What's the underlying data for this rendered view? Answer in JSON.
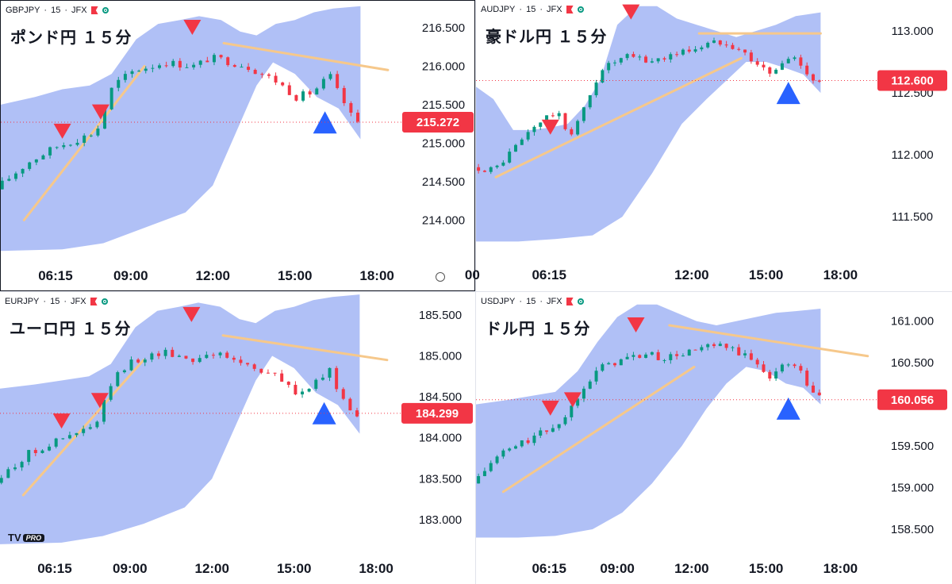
{
  "chart_data": [
    {
      "type": "candlestick",
      "symbol": "GBPJPY",
      "interval": "15",
      "exchange": "JFX",
      "title": "ポンド円 １５分",
      "last_price": "215.272",
      "y_ticks": [
        "216.500",
        "216.000",
        "215.500",
        "215.000",
        "214.500",
        "214.000"
      ],
      "y_tick_values": [
        216.5,
        216.0,
        215.5,
        215.0,
        214.5,
        214.0
      ],
      "x_ticks": [
        "06:15",
        "09:00",
        "12:00",
        "15:00",
        "18:00"
      ],
      "x_tick_hours": [
        6.25,
        9,
        12,
        15,
        18
      ],
      "ylim": [
        213.55,
        216.85
      ],
      "xlim": [
        4.25,
        18.75
      ],
      "path": [
        [
          4.3,
          214.4
        ],
        [
          5.5,
          214.75
        ],
        [
          6.5,
          214.95
        ],
        [
          7.3,
          215.05
        ],
        [
          8.0,
          215.15
        ],
        [
          8.6,
          215.75
        ],
        [
          9.4,
          215.95
        ],
        [
          10.0,
          216.0
        ],
        [
          10.5,
          216.05
        ],
        [
          11.6,
          216.0
        ],
        [
          12.1,
          216.1
        ],
        [
          12.4,
          216.1
        ],
        [
          13.5,
          216.0
        ],
        [
          14.6,
          215.8
        ],
        [
          15.3,
          215.6
        ],
        [
          15.8,
          215.65
        ],
        [
          16.2,
          215.75
        ],
        [
          16.5,
          215.9
        ],
        [
          16.9,
          215.6
        ],
        [
          17.2,
          215.45
        ],
        [
          17.4,
          215.27
        ]
      ],
      "cloud_upper": [
        [
          4.25,
          215.5
        ],
        [
          5.5,
          215.6
        ],
        [
          6.5,
          215.7
        ],
        [
          7.5,
          215.75
        ],
        [
          8.3,
          215.9
        ],
        [
          9.2,
          216.35
        ],
        [
          10.0,
          216.55
        ],
        [
          10.8,
          216.6
        ],
        [
          11.5,
          216.65
        ],
        [
          12.3,
          216.6
        ],
        [
          13.0,
          216.45
        ],
        [
          13.6,
          216.4
        ],
        [
          14.3,
          216.55
        ],
        [
          15.0,
          216.6
        ],
        [
          15.7,
          216.7
        ],
        [
          16.4,
          216.75
        ],
        [
          17.4,
          216.78
        ]
      ],
      "cloud_lower": [
        [
          4.25,
          213.6
        ],
        [
          6.5,
          213.62
        ],
        [
          8.0,
          213.7
        ],
        [
          9.5,
          213.9
        ],
        [
          11.0,
          214.1
        ],
        [
          12.0,
          214.45
        ],
        [
          12.8,
          215.1
        ],
        [
          13.6,
          215.75
        ],
        [
          14.2,
          216.05
        ],
        [
          15.0,
          215.9
        ],
        [
          15.8,
          215.6
        ],
        [
          16.6,
          215.45
        ],
        [
          17.4,
          215.05
        ]
      ],
      "trendlines": [
        [
          [
            5.1,
            214.0
          ],
          [
            9.5,
            216.0
          ]
        ],
        [
          [
            12.4,
            216.3
          ],
          [
            18.4,
            215.95
          ]
        ]
      ],
      "sell_signals": [
        [
          6.5,
          215.15
        ],
        [
          7.9,
          215.4
        ],
        [
          11.25,
          216.5
        ]
      ],
      "buy_signals": [
        [
          16.1,
          215.27
        ]
      ],
      "down_color": "#f23645",
      "up_color": "#089981"
    },
    {
      "type": "candlestick",
      "symbol": "AUDJPY",
      "interval": "15",
      "exchange": "JFX",
      "title": "豪ドル円 １５分",
      "last_price": "112.600",
      "y_ticks": [
        "113.000",
        "112.500",
        "112.000",
        "111.500"
      ],
      "y_tick_values": [
        113.0,
        112.5,
        112.0,
        111.5
      ],
      "x_ticks": [
        "00",
        "06:15",
        "12:00",
        "15:00",
        "18:00"
      ],
      "x_tick_hours": [
        3.15,
        6.25,
        12,
        15,
        18
      ],
      "ylim": [
        111.2,
        113.25
      ],
      "xlim": [
        3.3,
        19.3
      ],
      "path": [
        [
          3.4,
          111.9
        ],
        [
          4.3,
          111.88
        ],
        [
          5.3,
          112.1
        ],
        [
          6.0,
          112.25
        ],
        [
          6.8,
          112.35
        ],
        [
          7.3,
          112.15
        ],
        [
          8.0,
          112.4
        ],
        [
          8.6,
          112.7
        ],
        [
          9.2,
          112.75
        ],
        [
          9.8,
          112.8
        ],
        [
          10.5,
          112.75
        ],
        [
          11.3,
          112.8
        ],
        [
          12.2,
          112.85
        ],
        [
          13.0,
          112.9
        ],
        [
          13.6,
          112.92
        ],
        [
          14.2,
          112.85
        ],
        [
          14.8,
          112.75
        ],
        [
          15.4,
          112.65
        ],
        [
          15.8,
          112.72
        ],
        [
          16.3,
          112.8
        ],
        [
          16.8,
          112.7
        ],
        [
          17.2,
          112.6
        ]
      ],
      "cloud_upper": [
        [
          3.3,
          112.55
        ],
        [
          4.0,
          112.45
        ],
        [
          4.8,
          112.2
        ],
        [
          5.5,
          112.2
        ],
        [
          6.3,
          112.22
        ],
        [
          7.0,
          112.25
        ],
        [
          7.7,
          112.4
        ],
        [
          8.3,
          112.6
        ],
        [
          9.0,
          113.05
        ],
        [
          9.8,
          113.2
        ],
        [
          10.6,
          113.2
        ],
        [
          11.4,
          113.1
        ],
        [
          12.2,
          113.05
        ],
        [
          13.0,
          113.0
        ],
        [
          13.8,
          112.95
        ],
        [
          14.6,
          113.0
        ],
        [
          15.4,
          113.05
        ],
        [
          16.2,
          113.12
        ],
        [
          17.2,
          113.15
        ]
      ],
      "cloud_lower": [
        [
          3.3,
          111.3
        ],
        [
          5.0,
          111.3
        ],
        [
          6.5,
          111.32
        ],
        [
          8.0,
          111.35
        ],
        [
          9.2,
          111.5
        ],
        [
          10.4,
          111.85
        ],
        [
          11.6,
          112.25
        ],
        [
          12.6,
          112.45
        ],
        [
          13.4,
          112.6
        ],
        [
          14.2,
          112.75
        ],
        [
          15.0,
          112.75
        ],
        [
          15.8,
          112.7
        ],
        [
          16.5,
          112.65
        ],
        [
          17.2,
          112.5
        ]
      ],
      "trendlines": [
        [
          [
            4.1,
            111.82
          ],
          [
            14.0,
            112.78
          ]
        ],
        [
          [
            12.3,
            112.98
          ],
          [
            17.2,
            112.98
          ]
        ]
      ],
      "sell_signals": [
        [
          6.3,
          112.22
        ],
        [
          9.55,
          113.15
        ]
      ],
      "buy_signals": [
        [
          15.9,
          112.5
        ]
      ],
      "down_color": "#f23645",
      "up_color": "#089981"
    },
    {
      "type": "candlestick",
      "symbol": "EURJPY",
      "interval": "15",
      "exchange": "JFX",
      "title": "ユーロ円 １５分",
      "last_price": "184.299",
      "y_ticks": [
        "185.500",
        "185.000",
        "184.500",
        "184.000",
        "183.500",
        "183.000"
      ],
      "y_tick_values": [
        185.5,
        185.0,
        184.5,
        184.0,
        183.5,
        183.0
      ],
      "x_ticks": [
        "06:15",
        "09:00",
        "12:00",
        "15:00",
        "18:00"
      ],
      "x_tick_hours": [
        6.25,
        9,
        12,
        15,
        18
      ],
      "ylim": [
        182.68,
        185.78
      ],
      "xlim": [
        4.25,
        18.75
      ],
      "path": [
        [
          4.3,
          183.45
        ],
        [
          5.5,
          183.8
        ],
        [
          6.5,
          183.95
        ],
        [
          7.3,
          184.05
        ],
        [
          8.0,
          184.15
        ],
        [
          8.6,
          184.7
        ],
        [
          9.4,
          184.95
        ],
        [
          10.0,
          185.0
        ],
        [
          10.5,
          185.05
        ],
        [
          11.6,
          184.95
        ],
        [
          12.1,
          185.05
        ],
        [
          12.4,
          185.02
        ],
        [
          13.5,
          184.9
        ],
        [
          14.6,
          184.75
        ],
        [
          15.3,
          184.55
        ],
        [
          15.8,
          184.6
        ],
        [
          16.2,
          184.7
        ],
        [
          16.5,
          184.85
        ],
        [
          16.9,
          184.55
        ],
        [
          17.2,
          184.4
        ],
        [
          17.4,
          184.3
        ]
      ],
      "cloud_upper": [
        [
          4.25,
          184.6
        ],
        [
          5.5,
          184.65
        ],
        [
          6.5,
          184.7
        ],
        [
          7.5,
          184.75
        ],
        [
          8.3,
          184.9
        ],
        [
          9.2,
          185.35
        ],
        [
          10.0,
          185.55
        ],
        [
          10.8,
          185.6
        ],
        [
          11.5,
          185.65
        ],
        [
          12.3,
          185.6
        ],
        [
          13.0,
          185.45
        ],
        [
          13.6,
          185.4
        ],
        [
          14.3,
          185.55
        ],
        [
          15.0,
          185.6
        ],
        [
          15.7,
          185.68
        ],
        [
          16.4,
          185.72
        ],
        [
          17.4,
          185.75
        ]
      ],
      "cloud_lower": [
        [
          4.25,
          182.7
        ],
        [
          6.5,
          182.72
        ],
        [
          8.0,
          182.8
        ],
        [
          9.5,
          182.95
        ],
        [
          11.0,
          183.15
        ],
        [
          12.0,
          183.5
        ],
        [
          12.8,
          184.1
        ],
        [
          13.6,
          184.7
        ],
        [
          14.2,
          185.0
        ],
        [
          15.0,
          184.85
        ],
        [
          15.8,
          184.55
        ],
        [
          16.6,
          184.4
        ],
        [
          17.4,
          184.05
        ]
      ],
      "trendlines": [
        [
          [
            5.1,
            183.3
          ],
          [
            9.5,
            184.95
          ]
        ],
        [
          [
            12.4,
            185.25
          ],
          [
            18.4,
            184.95
          ]
        ]
      ],
      "sell_signals": [
        [
          6.5,
          184.2
        ],
        [
          7.9,
          184.45
        ],
        [
          11.25,
          185.5
        ]
      ],
      "buy_signals": [
        [
          16.1,
          184.3
        ]
      ],
      "down_color": "#f23645",
      "up_color": "#089981"
    },
    {
      "type": "candlestick",
      "symbol": "USDJPY",
      "interval": "15",
      "exchange": "JFX",
      "title": "ドル円 １５分",
      "last_price": "160.056",
      "y_ticks": [
        "161.000",
        "160.500",
        "160.000",
        "159.500",
        "159.000",
        "158.500"
      ],
      "y_tick_values": [
        161.0,
        160.5,
        160.0,
        159.5,
        159.0,
        158.5
      ],
      "x_ticks": [
        "06:15",
        "09:00",
        "12:00",
        "15:00",
        "18:00"
      ],
      "x_tick_hours": [
        6.25,
        9,
        12,
        15,
        18
      ],
      "ylim": [
        158.3,
        161.35
      ],
      "xlim": [
        3.3,
        19.3
      ],
      "path": [
        [
          3.4,
          159.05
        ],
        [
          4.5,
          159.4
        ],
        [
          5.5,
          159.55
        ],
        [
          6.5,
          159.7
        ],
        [
          7.2,
          159.85
        ],
        [
          7.8,
          160.2
        ],
        [
          8.4,
          160.4
        ],
        [
          9.0,
          160.5
        ],
        [
          9.6,
          160.55
        ],
        [
          10.4,
          160.6
        ],
        [
          11.2,
          160.55
        ],
        [
          11.8,
          160.6
        ],
        [
          12.4,
          160.65
        ],
        [
          13.2,
          160.7
        ],
        [
          14.0,
          160.65
        ],
        [
          14.8,
          160.5
        ],
        [
          15.4,
          160.35
        ],
        [
          15.9,
          160.45
        ],
        [
          16.4,
          160.5
        ],
        [
          16.8,
          160.3
        ],
        [
          17.2,
          160.1
        ]
      ],
      "cloud_upper": [
        [
          3.3,
          160.0
        ],
        [
          4.5,
          160.05
        ],
        [
          5.5,
          160.1
        ],
        [
          6.5,
          160.15
        ],
        [
          7.4,
          160.4
        ],
        [
          8.2,
          160.75
        ],
        [
          9.0,
          161.05
        ],
        [
          9.8,
          161.2
        ],
        [
          10.6,
          161.2
        ],
        [
          11.4,
          161.1
        ],
        [
          12.2,
          161.0
        ],
        [
          13.0,
          160.95
        ],
        [
          13.8,
          161.0
        ],
        [
          14.6,
          161.05
        ],
        [
          15.4,
          161.1
        ],
        [
          16.2,
          161.12
        ],
        [
          17.2,
          161.15
        ]
      ],
      "cloud_lower": [
        [
          3.3,
          158.4
        ],
        [
          5.0,
          158.4
        ],
        [
          6.5,
          158.42
        ],
        [
          8.0,
          158.5
        ],
        [
          9.2,
          158.7
        ],
        [
          10.4,
          159.05
        ],
        [
          11.6,
          159.5
        ],
        [
          12.6,
          159.95
        ],
        [
          13.4,
          160.25
        ],
        [
          14.2,
          160.45
        ],
        [
          15.0,
          160.4
        ],
        [
          15.8,
          160.25
        ],
        [
          16.5,
          160.2
        ],
        [
          17.2,
          160.0
        ]
      ],
      "trendlines": [
        [
          [
            4.4,
            158.95
          ],
          [
            12.1,
            160.45
          ]
        ],
        [
          [
            11.1,
            160.95
          ],
          [
            19.1,
            160.58
          ]
        ]
      ],
      "sell_signals": [
        [
          6.3,
          159.95
        ],
        [
          7.2,
          160.05
        ],
        [
          9.75,
          160.95
        ]
      ],
      "buy_signals": [
        [
          15.9,
          159.95
        ]
      ],
      "down_color": "#f23645",
      "up_color": "#089981"
    }
  ]
}
